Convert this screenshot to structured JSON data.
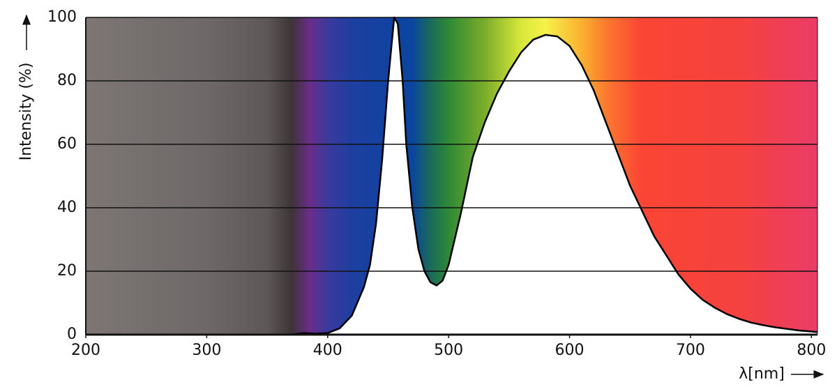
{
  "chart_data": {
    "type": "line",
    "x_label": "λ[nm]",
    "y_label": "Intensity (%)",
    "x": [
      200,
      300,
      370,
      380,
      390,
      400,
      410,
      420,
      430,
      435,
      440,
      445,
      450,
      455,
      458,
      462,
      465,
      470,
      475,
      480,
      485,
      490,
      495,
      500,
      510,
      520,
      530,
      540,
      550,
      560,
      570,
      580,
      590,
      600,
      610,
      620,
      630,
      640,
      650,
      660,
      670,
      680,
      690,
      700,
      710,
      720,
      730,
      740,
      750,
      760,
      770,
      780,
      790,
      800,
      805
    ],
    "series": [
      {
        "color": "#000000",
        "values": [
          0,
          0,
          0,
          0.5,
          0.3,
          0.5,
          2,
          6,
          15,
          22,
          35,
          55,
          80,
          100,
          98,
          80,
          60,
          40,
          27,
          20,
          16.5,
          15.5,
          17,
          22,
          38,
          56,
          67,
          76,
          83,
          89,
          93,
          94.5,
          94,
          91,
          85,
          77,
          67,
          57,
          47,
          39,
          31,
          25,
          19,
          14.5,
          11,
          8.5,
          6.5,
          5,
          3.8,
          3,
          2.3,
          1.8,
          1.3,
          1,
          0.8
        ]
      }
    ],
    "xlim": [
      200,
      805
    ],
    "ylim": [
      0,
      100
    ],
    "xticks": [
      200,
      300,
      400,
      500,
      600,
      700,
      800
    ],
    "yticks": [
      0,
      20,
      40,
      60,
      80,
      100
    ],
    "grid": true
  }
}
